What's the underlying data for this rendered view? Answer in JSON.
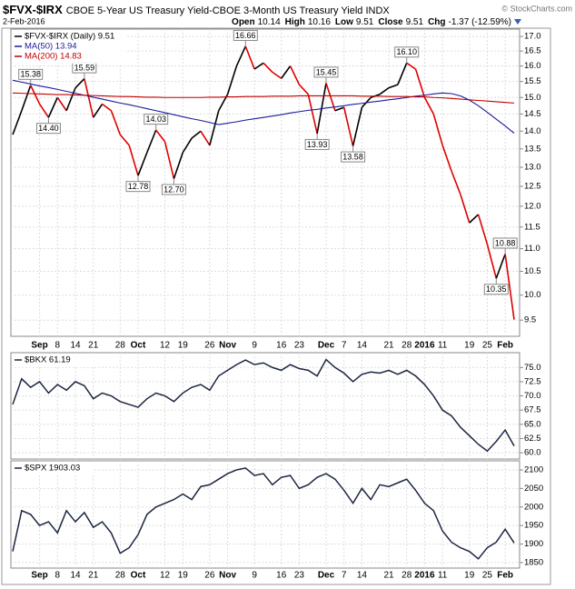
{
  "header": {
    "symbol": "$FVX-$IRX",
    "title": "CBOE 5-Year US Treasury Yield-CBOE 3-Month US Treasury Yield INDX",
    "source": "© StockCharts.com",
    "date": "2-Feb-2016",
    "quote": [
      {
        "label": "Open",
        "value": 10.14
      },
      {
        "label": "High",
        "value": 10.16
      },
      {
        "label": "Low",
        "value": 9.51
      },
      {
        "label": "Close",
        "value": 9.51
      },
      {
        "label": "Chg",
        "value": -1.37,
        "value_label": "-1.37 (-12.59%)"
      }
    ]
  },
  "chart_data": [
    {
      "type": "line",
      "log": true,
      "grid": true,
      "categories": [
        null,
        null,
        null,
        "Sep",
        null,
        "8",
        null,
        "14",
        null,
        "21",
        null,
        null,
        "28",
        null,
        "Oct",
        null,
        null,
        "12",
        null,
        "19",
        null,
        null,
        "26",
        null,
        "Nov",
        null,
        null,
        "9",
        null,
        null,
        "16",
        null,
        "23",
        null,
        null,
        "Dec",
        null,
        "7",
        null,
        "14",
        null,
        null,
        "21",
        null,
        "28",
        null,
        "2016",
        null,
        "11",
        null,
        null,
        "19",
        null,
        "25",
        null,
        "Feb",
        null
      ],
      "ylim": [
        9.19,
        17.26
      ],
      "yticks": [
        9.5,
        {
          "value": 10,
          "label": "10.0"
        },
        10.5,
        {
          "value": 11,
          "label": "11.0"
        },
        11.5,
        {
          "value": 12,
          "label": "12.0"
        },
        12.5,
        {
          "value": 13,
          "label": "13.0"
        },
        13.5,
        {
          "value": 14,
          "label": "14.0"
        },
        14.5,
        {
          "value": 15,
          "label": "15.0"
        },
        15.5,
        {
          "value": 16,
          "label": "16.0"
        },
        16.5,
        {
          "value": 17,
          "label": "17.0"
        }
      ],
      "series": [
        {
          "name": "$FVX-$IRX (Daily) 9.51",
          "color": "#000000",
          "up_color": "#000000",
          "down_color": "#e00000",
          "values": [
            13.9,
            14.6,
            15.38,
            14.8,
            14.4,
            15.0,
            14.6,
            15.3,
            15.59,
            14.4,
            14.8,
            14.6,
            13.9,
            13.6,
            12.78,
            13.4,
            14.03,
            13.7,
            12.7,
            13.4,
            13.8,
            14.0,
            13.6,
            14.6,
            15.1,
            16.0,
            16.66,
            15.9,
            16.1,
            15.8,
            15.6,
            16.0,
            15.4,
            15.1,
            13.93,
            15.45,
            14.6,
            14.7,
            13.58,
            14.7,
            15.0,
            15.1,
            15.3,
            15.4,
            16.1,
            15.9,
            15.0,
            14.5,
            13.6,
            12.9,
            12.3,
            11.6,
            11.8,
            11.1,
            10.35,
            10.88,
            9.51
          ],
          "value_labels": [
            null,
            null,
            "15.38",
            null,
            "14.40",
            null,
            null,
            null,
            "15.59",
            null,
            null,
            null,
            null,
            null,
            "12.78",
            null,
            "14.03",
            null,
            "12.70",
            null,
            null,
            null,
            null,
            null,
            null,
            null,
            "16.66",
            null,
            null,
            null,
            null,
            null,
            null,
            null,
            "13.93",
            "15.45",
            null,
            null,
            "13.58",
            null,
            null,
            null,
            null,
            null,
            "16.10",
            null,
            null,
            null,
            null,
            null,
            null,
            null,
            null,
            null,
            "10.35",
            "10.88",
            null
          ]
        },
        {
          "name": "MA(50) 13.94",
          "color": "#1a1a9c",
          "values": [
            15.54,
            15.48,
            15.42,
            15.36,
            15.31,
            15.25,
            15.19,
            15.13,
            15.07,
            15.01,
            14.95,
            14.89,
            14.83,
            14.78,
            14.72,
            14.66,
            14.6,
            14.54,
            14.48,
            14.42,
            14.36,
            14.31,
            14.25,
            14.19,
            14.23,
            14.27,
            14.32,
            14.36,
            14.4,
            14.44,
            14.48,
            14.53,
            14.57,
            14.61,
            14.64,
            14.68,
            14.71,
            14.75,
            14.79,
            14.82,
            14.86,
            14.89,
            14.93,
            14.96,
            15.0,
            15.04,
            15.07,
            15.11,
            15.14,
            15.12,
            15.05,
            14.92,
            14.75,
            14.55,
            14.35,
            14.15,
            13.94
          ]
        },
        {
          "name": "MA(200) 14.83",
          "color": "#c00000",
          "values": [
            15.14,
            15.13,
            15.12,
            15.11,
            15.1,
            15.09,
            15.09,
            15.08,
            15.07,
            15.06,
            15.05,
            15.04,
            15.03,
            15.03,
            15.02,
            15.01,
            15.01,
            15.0,
            15.0,
            15.0,
            15.0,
            15.0,
            15.01,
            15.01,
            15.02,
            15.02,
            15.03,
            15.03,
            15.03,
            15.04,
            15.04,
            15.04,
            15.05,
            15.05,
            15.05,
            15.05,
            15.05,
            15.05,
            15.05,
            15.04,
            15.04,
            15.04,
            15.03,
            15.03,
            15.03,
            15.02,
            15.02,
            15.0,
            14.99,
            14.97,
            14.95,
            14.93,
            14.91,
            14.89,
            14.87,
            14.85,
            14.83
          ]
        }
      ]
    },
    {
      "type": "line",
      "grid": true,
      "ylim": [
        58.9,
        77.6
      ],
      "yticks": [
        {
          "value": 60,
          "label": "60.0"
        },
        62.5,
        {
          "value": 65,
          "label": "65.0"
        },
        67.5,
        {
          "value": 70,
          "label": "70.0"
        },
        72.5,
        {
          "value": 75,
          "label": "75.0"
        }
      ],
      "series": [
        {
          "name": "$BKX 61.19",
          "color": "#1c2640",
          "values": [
            68.5,
            73.0,
            71.5,
            72.5,
            70.5,
            72.0,
            71.0,
            72.5,
            71.8,
            69.5,
            70.5,
            70.0,
            69.0,
            68.5,
            68.0,
            69.5,
            70.5,
            70.0,
            69.0,
            70.5,
            71.5,
            72.0,
            71.0,
            73.5,
            74.5,
            75.5,
            76.3,
            75.5,
            75.8,
            75.0,
            74.5,
            75.5,
            74.8,
            74.5,
            73.5,
            76.4,
            75.0,
            74.0,
            72.5,
            73.8,
            74.2,
            74.0,
            74.5,
            73.8,
            74.5,
            73.5,
            72.0,
            70.0,
            67.5,
            66.5,
            64.5,
            63.0,
            61.5,
            60.3,
            62.0,
            64.0,
            61.19
          ]
        }
      ]
    },
    {
      "type": "line",
      "grid": true,
      "categories": [
        null,
        null,
        null,
        "Sep",
        null,
        "8",
        null,
        "14",
        null,
        "21",
        null,
        null,
        "28",
        null,
        "Oct",
        null,
        null,
        "12",
        null,
        "19",
        null,
        null,
        "26",
        null,
        "Nov",
        null,
        null,
        "9",
        null,
        null,
        "16",
        null,
        "23",
        null,
        null,
        "Dec",
        null,
        "7",
        null,
        "14",
        null,
        null,
        "21",
        null,
        "28",
        null,
        "2016",
        null,
        "11",
        null,
        null,
        "19",
        null,
        "25",
        null,
        "Feb",
        null
      ],
      "ylim": [
        1835,
        2124.5
      ],
      "yticks": [
        1850,
        1900,
        1950,
        2000,
        2050,
        2100
      ],
      "series": [
        {
          "name": "$SPX 1903.03",
          "color": "#1c2640",
          "values": [
            1880,
            1990,
            1980,
            1950,
            1960,
            1930,
            1990,
            1960,
            1985,
            1945,
            1960,
            1930,
            1875,
            1890,
            1925,
            1980,
            2000,
            2010,
            2020,
            2035,
            2020,
            2055,
            2060,
            2075,
            2090,
            2100,
            2105,
            2085,
            2090,
            2060,
            2080,
            2085,
            2050,
            2060,
            2080,
            2090,
            2075,
            2045,
            2010,
            2050,
            2020,
            2060,
            2055,
            2065,
            2075,
            2045,
            2010,
            1990,
            1935,
            1905,
            1890,
            1880,
            1860,
            1890,
            1905,
            1940,
            1903
          ]
        }
      ]
    }
  ]
}
